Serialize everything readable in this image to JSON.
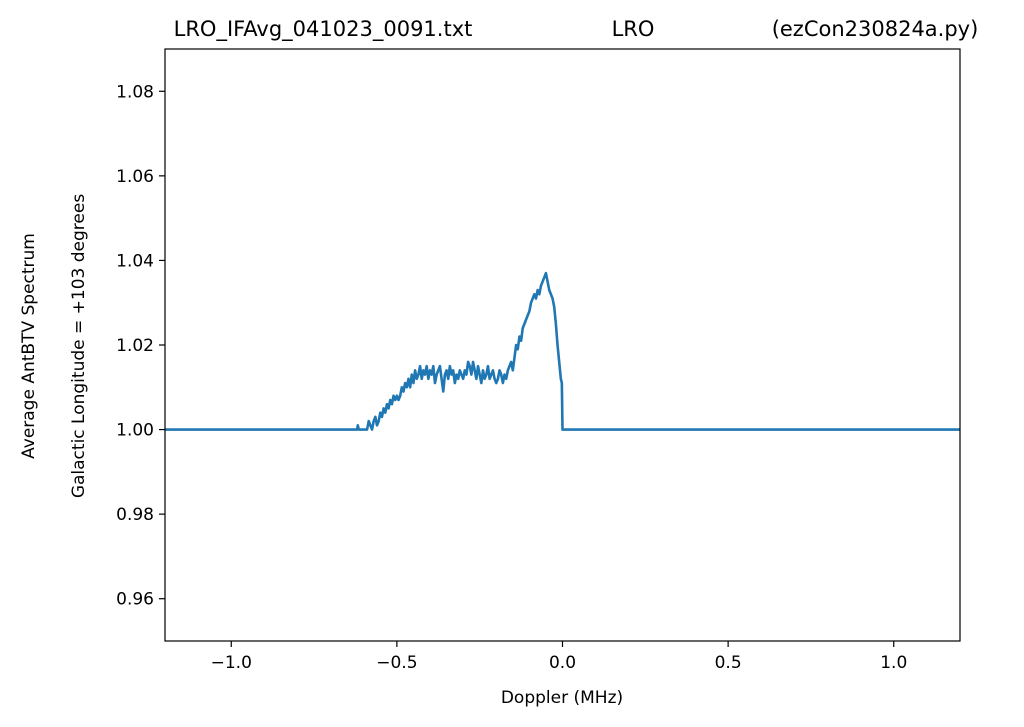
{
  "chart_data": {
    "type": "line",
    "title_left": "LRO_IFAvg_041023_0091.txt",
    "title_center": "LRO",
    "title_right": "(ezCon230824a.py)",
    "xlabel": "Doppler (MHz)",
    "ylabel_line1": "Average AntBTV Spectrum",
    "ylabel_line2": "Galactic Longitude = +103 degrees",
    "xlim": [
      -1.2,
      1.2
    ],
    "ylim": [
      0.95,
      1.09
    ],
    "grid": false,
    "x_ticks": [
      -1.0,
      -0.5,
      0.0,
      0.5,
      1.0
    ],
    "x_tick_labels": [
      "−1.0",
      "−0.5",
      "0.0",
      "0.5",
      "1.0"
    ],
    "y_ticks": [
      0.96,
      0.98,
      1.0,
      1.02,
      1.04,
      1.06,
      1.08
    ],
    "y_tick_labels": [
      "0.96",
      "0.98",
      "1.00",
      "1.02",
      "1.04",
      "1.06",
      "1.08"
    ],
    "series": [
      {
        "color": "#1f77b4",
        "x": [
          -1.2,
          -0.62,
          -0.618,
          -0.615,
          -0.61,
          -0.6,
          -0.59,
          -0.585,
          -0.58,
          -0.575,
          -0.57,
          -0.565,
          -0.56,
          -0.555,
          -0.55,
          -0.545,
          -0.54,
          -0.535,
          -0.53,
          -0.525,
          -0.52,
          -0.515,
          -0.51,
          -0.505,
          -0.5,
          -0.495,
          -0.49,
          -0.485,
          -0.48,
          -0.475,
          -0.47,
          -0.465,
          -0.46,
          -0.455,
          -0.45,
          -0.445,
          -0.44,
          -0.435,
          -0.43,
          -0.425,
          -0.42,
          -0.415,
          -0.41,
          -0.405,
          -0.4,
          -0.395,
          -0.39,
          -0.385,
          -0.38,
          -0.375,
          -0.37,
          -0.365,
          -0.36,
          -0.355,
          -0.35,
          -0.345,
          -0.34,
          -0.335,
          -0.33,
          -0.325,
          -0.32,
          -0.315,
          -0.31,
          -0.305,
          -0.3,
          -0.295,
          -0.29,
          -0.285,
          -0.28,
          -0.275,
          -0.27,
          -0.265,
          -0.26,
          -0.255,
          -0.25,
          -0.245,
          -0.24,
          -0.235,
          -0.23,
          -0.225,
          -0.22,
          -0.215,
          -0.21,
          -0.205,
          -0.2,
          -0.195,
          -0.19,
          -0.185,
          -0.18,
          -0.175,
          -0.17,
          -0.165,
          -0.16,
          -0.155,
          -0.15,
          -0.145,
          -0.14,
          -0.135,
          -0.13,
          -0.125,
          -0.12,
          -0.115,
          -0.11,
          -0.105,
          -0.1,
          -0.095,
          -0.09,
          -0.085,
          -0.08,
          -0.075,
          -0.07,
          -0.065,
          -0.06,
          -0.055,
          -0.05,
          -0.045,
          -0.04,
          -0.035,
          -0.03,
          -0.025,
          -0.02,
          -0.015,
          -0.01,
          -0.005,
          -0.002,
          0.0,
          0.001,
          1.2
        ],
        "y": [
          1.0,
          1.0,
          1.001,
          1.0,
          1.0,
          1.0,
          1.0,
          1.002,
          1.001,
          1.0,
          1.002,
          1.003,
          1.001,
          1.002,
          1.004,
          1.003,
          1.005,
          1.004,
          1.006,
          1.005,
          1.007,
          1.006,
          1.008,
          1.007,
          1.008,
          1.007,
          1.008,
          1.01,
          1.009,
          1.011,
          1.01,
          1.012,
          1.01,
          1.013,
          1.011,
          1.014,
          1.012,
          1.013,
          1.015,
          1.012,
          1.014,
          1.013,
          1.015,
          1.012,
          1.014,
          1.013,
          1.015,
          1.011,
          1.013,
          1.014,
          1.015,
          1.012,
          1.009,
          1.013,
          1.014,
          1.012,
          1.015,
          1.013,
          1.014,
          1.011,
          1.013,
          1.012,
          1.014,
          1.013,
          1.012,
          1.014,
          1.013,
          1.016,
          1.015,
          1.013,
          1.016,
          1.014,
          1.012,
          1.015,
          1.013,
          1.011,
          1.014,
          1.012,
          1.013,
          1.015,
          1.012,
          1.013,
          1.014,
          1.012,
          1.011,
          1.012,
          1.014,
          1.013,
          1.011,
          1.013,
          1.012,
          1.014,
          1.015,
          1.016,
          1.014,
          1.017,
          1.02,
          1.019,
          1.022,
          1.021,
          1.024,
          1.025,
          1.026,
          1.027,
          1.028,
          1.03,
          1.031,
          1.032,
          1.031,
          1.033,
          1.032,
          1.034,
          1.035,
          1.036,
          1.037,
          1.035,
          1.033,
          1.032,
          1.031,
          1.029,
          1.025,
          1.02,
          1.016,
          1.012,
          1.011,
          1.0,
          1.0,
          1.0
        ]
      }
    ]
  }
}
